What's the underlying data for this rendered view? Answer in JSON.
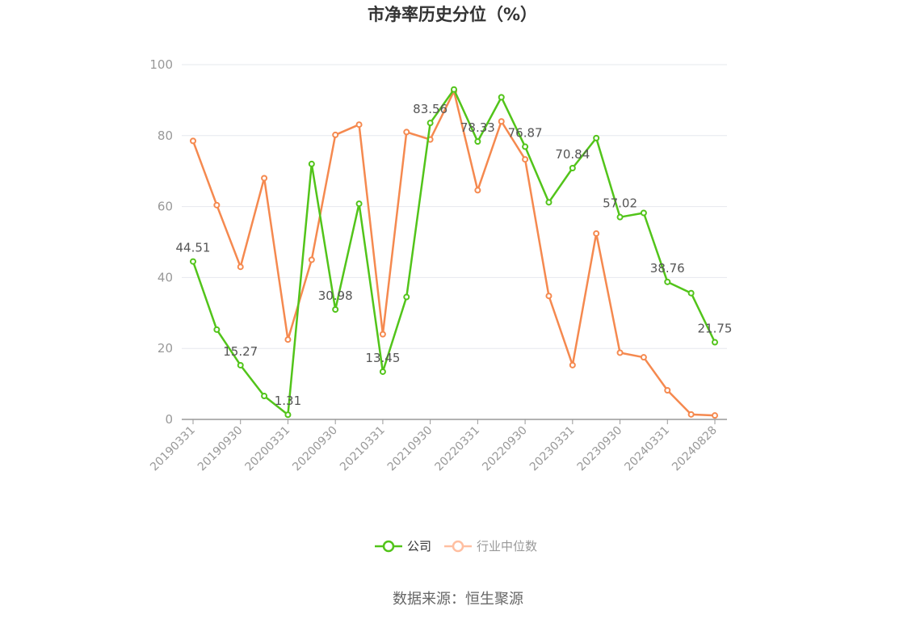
{
  "chart_data": {
    "type": "line",
    "title": "市净率历史分位（%）",
    "ylim": [
      0,
      100
    ],
    "yticks": [
      0,
      20,
      40,
      60,
      80,
      100
    ],
    "grid": true,
    "legend_position": "bottom-center",
    "x_tick_labels": [
      "20190331",
      "20190930",
      "20200331",
      "20200930",
      "20210331",
      "20210930",
      "20220331",
      "20220930",
      "20230331",
      "20230930",
      "20240331",
      "20240828"
    ],
    "x": [
      "20190331",
      "20190630",
      "20190930",
      "20191231",
      "20200331",
      "20200630",
      "20200930",
      "20201231",
      "20210331",
      "20210630",
      "20210930",
      "20211231",
      "20220331",
      "20220630",
      "20220930",
      "20221231",
      "20230331",
      "20230630",
      "20230930",
      "20231231",
      "20240331",
      "20240630",
      "20240828"
    ],
    "series": [
      {
        "name": "公司",
        "color": "#52c41a",
        "values": [
          44.51,
          25.3,
          15.27,
          6.6,
          1.31,
          72.0,
          30.98,
          60.8,
          13.45,
          34.5,
          83.56,
          93.0,
          78.33,
          90.8,
          76.87,
          61.2,
          70.84,
          79.3,
          57.02,
          58.2,
          38.76,
          35.6,
          21.75
        ],
        "labels": [
          "44.51",
          "",
          "15.27",
          "",
          "1.31",
          "",
          "30.98",
          "",
          "13.45",
          "",
          "83.56",
          "",
          "78.33",
          "",
          "76.87",
          "",
          "70.84",
          "",
          "57.02",
          "",
          "38.76",
          "",
          "21.75"
        ]
      },
      {
        "name": "行业中位数",
        "color": "#f5894f",
        "values": [
          78.5,
          60.4,
          43.0,
          68.0,
          22.5,
          45.0,
          80.2,
          83.1,
          24.0,
          81.0,
          78.9,
          92.5,
          64.6,
          84.0,
          73.3,
          34.8,
          15.3,
          52.4,
          18.8,
          17.5,
          8.2,
          1.4,
          1.1
        ]
      }
    ]
  },
  "legend": {
    "company": "公司",
    "industry": "行业中位数",
    "inactive_color": "#ffbfa1"
  },
  "footer": {
    "source": "数据来源：恒生聚源"
  }
}
